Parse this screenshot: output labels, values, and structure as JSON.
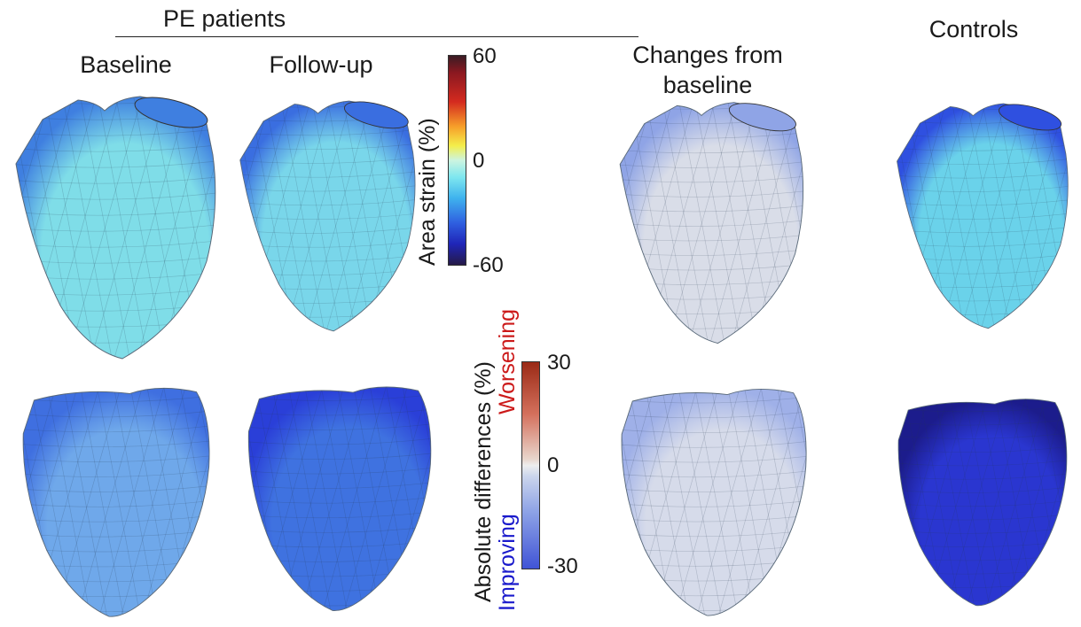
{
  "group_label": "PE patients",
  "columns": {
    "baseline": "Baseline",
    "followup": "Follow-up",
    "changes": "Changes from baseline",
    "controls": "Controls"
  },
  "strain_colorbar": {
    "label": "Area strain (%)",
    "ticks": {
      "max": "60",
      "mid": "0",
      "min": "-60"
    },
    "range": [
      -60,
      60
    ]
  },
  "diff_colorbar": {
    "label": "Absolute differences (%)",
    "improving": "Improving",
    "worsening": "Worsening",
    "ticks": {
      "max": "30",
      "mid": "0",
      "min": "-30"
    },
    "range": [
      -30,
      30
    ],
    "improving_color": "#1a1acc",
    "worsening_color": "#cc1a1a"
  },
  "rows": {
    "top": [
      {
        "column": "baseline",
        "fill": "#7fdde8",
        "shade": "#3f7fe0"
      },
      {
        "column": "followup",
        "fill": "#79d6ea",
        "shade": "#3a6ee0"
      },
      {
        "column": "changes",
        "fill": "#d9dde8",
        "shade": "#8fa4e6"
      },
      {
        "column": "controls",
        "fill": "#6ad2ea",
        "shade": "#2f50e0"
      }
    ],
    "bottom": [
      {
        "column": "baseline",
        "fill": "#6fa8ea",
        "shade": "#3f6fe0"
      },
      {
        "column": "followup",
        "fill": "#3f72e0",
        "shade": "#2a3fd8"
      },
      {
        "column": "changes",
        "fill": "#d6dbea",
        "shade": "#9fb0e8"
      },
      {
        "column": "controls",
        "fill": "#2a36d0",
        "shade": "#1c1c8c"
      }
    ]
  }
}
